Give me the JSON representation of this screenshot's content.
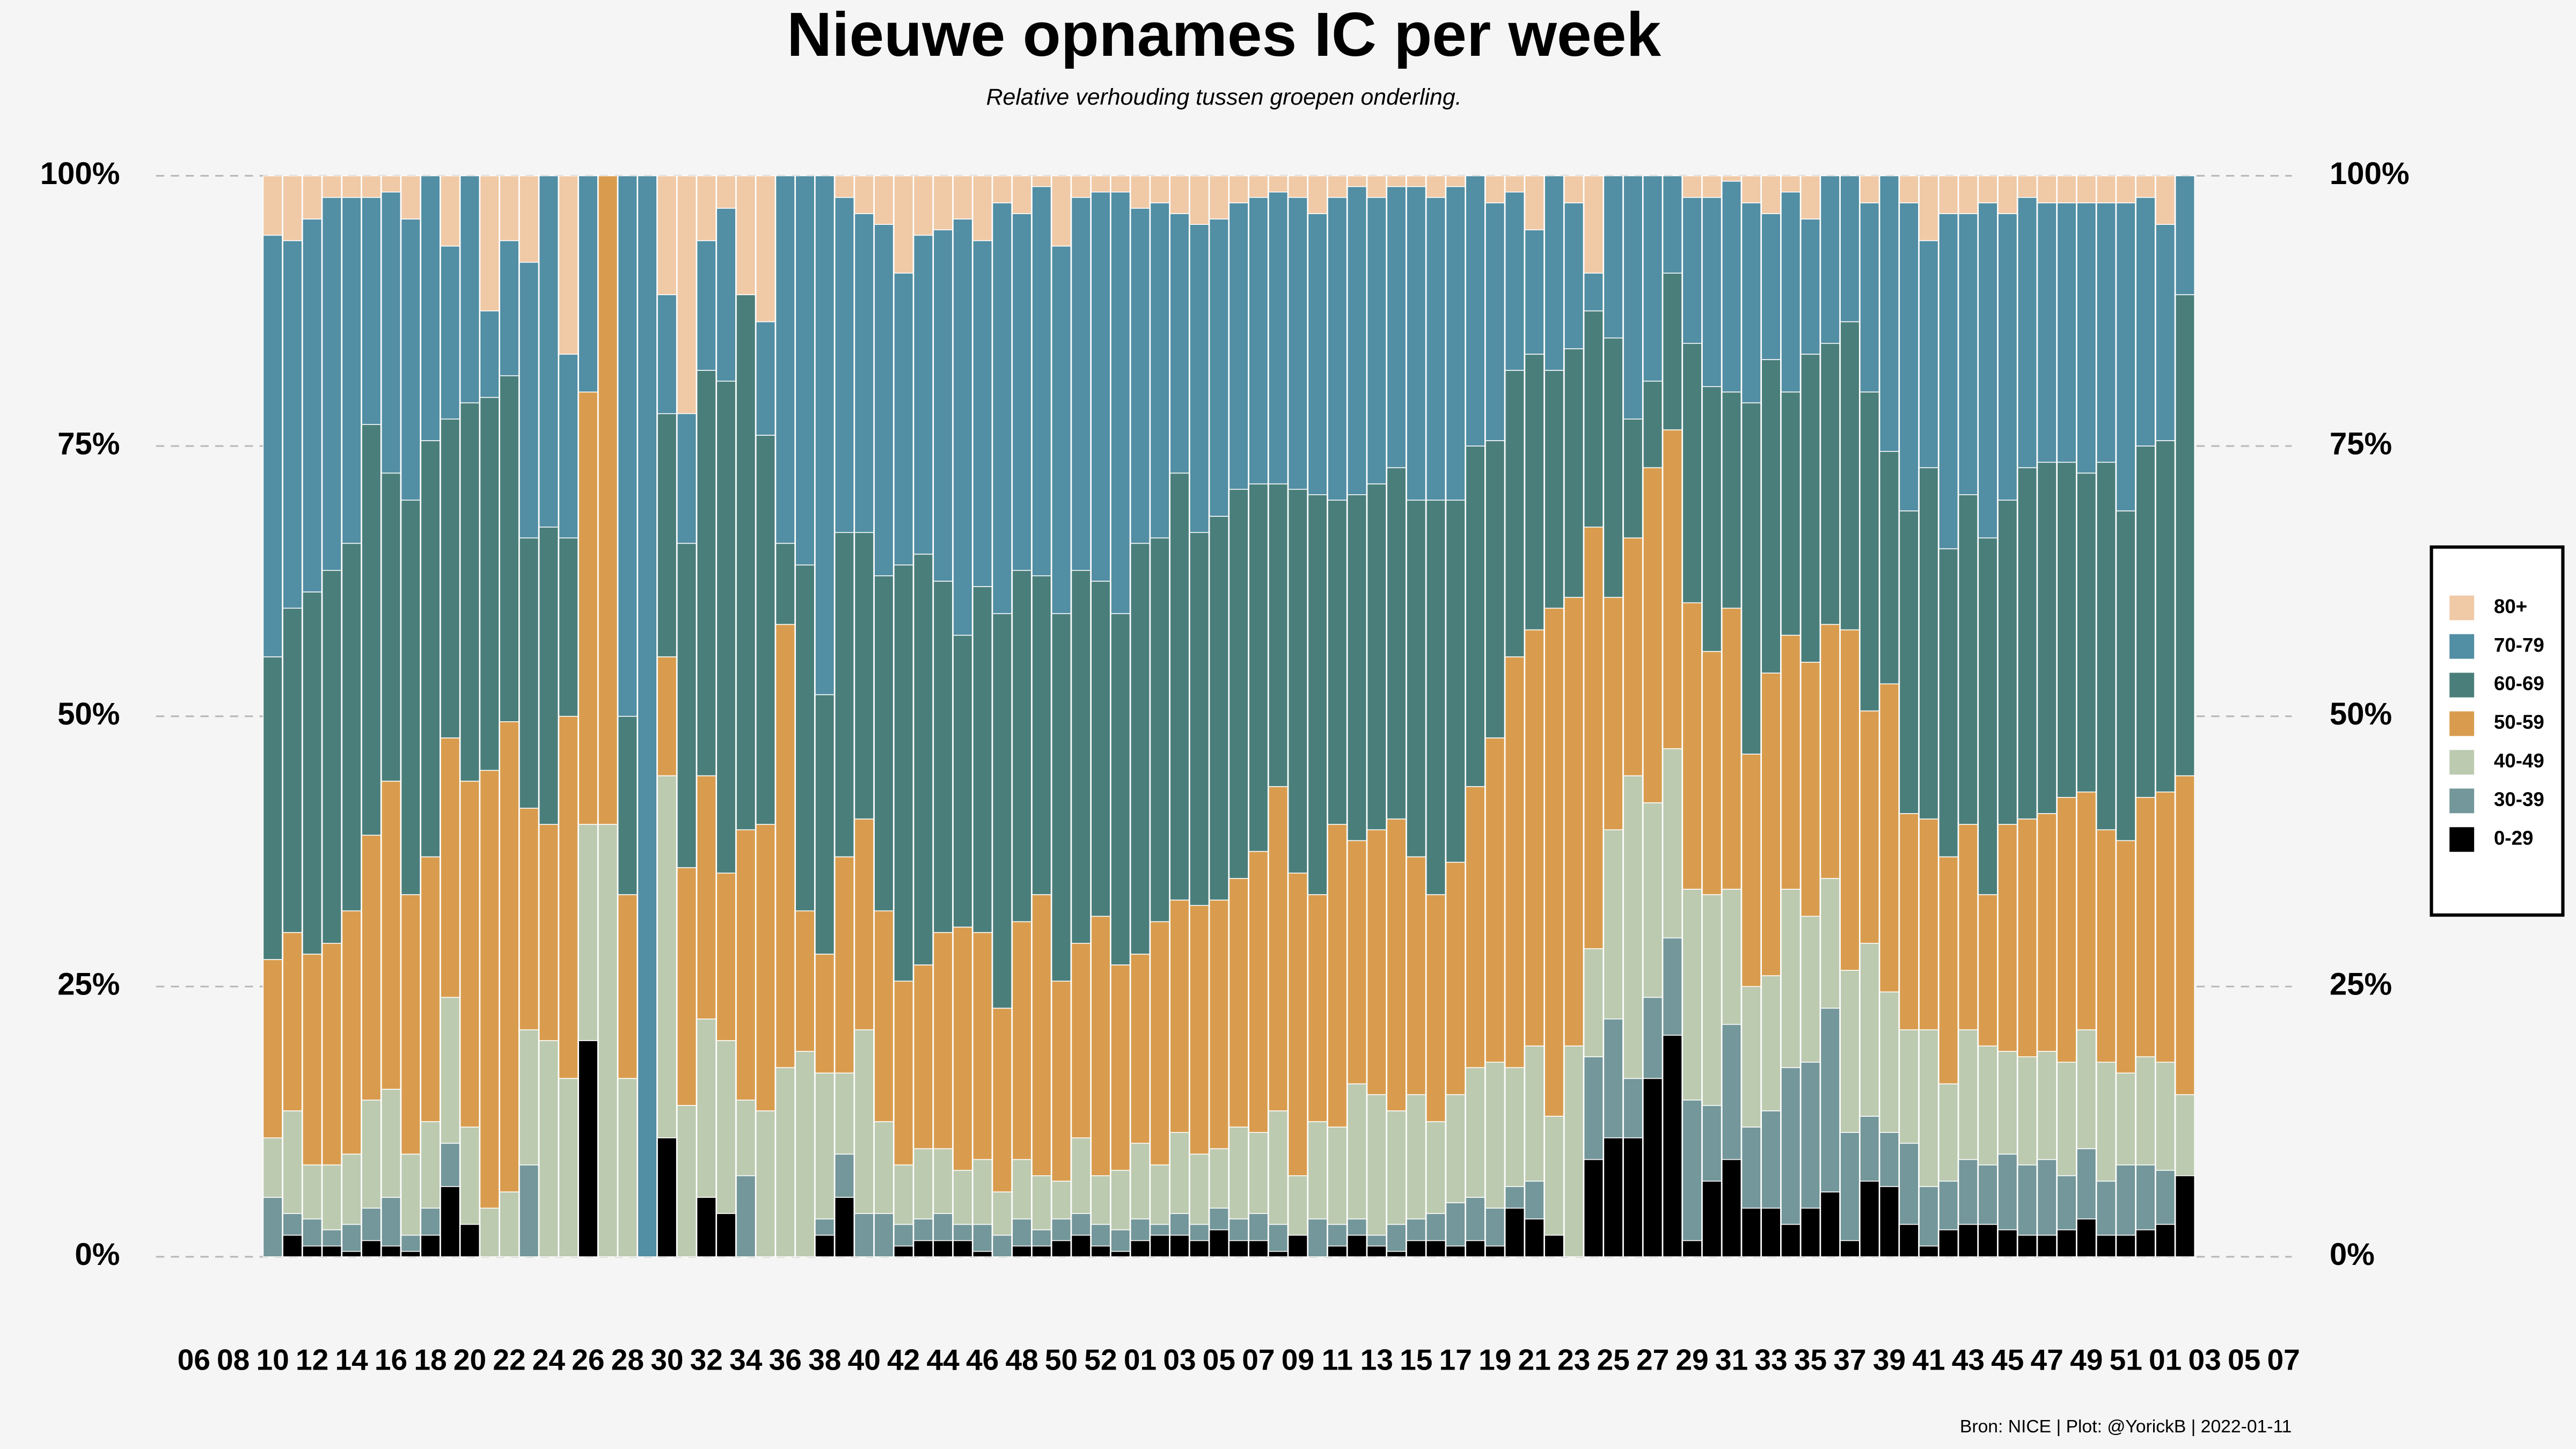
{
  "chart_data": {
    "type": "stacked_bar",
    "title": "Nieuwe opnames IC per week",
    "subtitle": "Relative verhouding tussen groepen onderling.",
    "caption": "Bron: NICE | Plot: @YorickB |  2022-01-11",
    "categories": [
      "06",
      null,
      "08",
      null,
      "10",
      null,
      "12",
      null,
      "14",
      null,
      "16",
      null,
      "18",
      null,
      "20",
      null,
      "22",
      null,
      "24",
      null,
      "26",
      null,
      "28",
      null,
      "30",
      null,
      "32",
      null,
      "34",
      null,
      "36",
      null,
      "38",
      null,
      "40",
      null,
      "42",
      null,
      "44",
      null,
      "46",
      null,
      "48",
      null,
      "50",
      null,
      "52",
      null,
      "01",
      null,
      "03",
      null,
      "05",
      null,
      "07",
      null,
      "09",
      null,
      "11",
      null,
      "13",
      null,
      "15",
      null,
      "17",
      null,
      "19",
      null,
      "21",
      null,
      "23",
      null,
      "25",
      null,
      "27",
      null,
      "29",
      null,
      "31",
      null,
      "33",
      null,
      "35",
      null,
      "37",
      null,
      "39",
      null,
      "41",
      null,
      "43",
      null,
      "45",
      null,
      "47",
      null,
      "49",
      null,
      "51",
      null,
      "01",
      null,
      "03",
      null,
      "05",
      null,
      "07"
    ],
    "ylim": [
      0,
      100
    ],
    "yticks": [
      {
        "value": 0,
        "label": "0%"
      },
      {
        "value": 25,
        "label": "25%"
      },
      {
        "value": 50,
        "label": "50%"
      },
      {
        "value": 75,
        "label": "75%"
      },
      {
        "value": 100,
        "label": "100%"
      }
    ],
    "grid": true,
    "legend": "right",
    "series": [
      {
        "name": "0-29",
        "color": "#000000",
        "values": [
          null,
          null,
          null,
          null,
          0,
          2,
          1,
          1,
          0.5,
          1.5,
          1,
          0.5,
          2,
          6.5,
          3,
          0,
          0,
          0,
          0,
          0,
          20,
          0,
          0,
          0,
          11,
          0,
          5.5,
          4,
          0,
          0,
          0,
          0,
          2,
          5.5,
          0,
          0,
          1,
          1.5,
          1.5,
          1.5,
          0.5,
          0,
          1,
          1,
          1.5,
          2,
          1,
          0.5,
          1.5,
          2,
          2,
          1.5,
          2.5,
          1.5,
          1.5,
          0.5,
          2,
          0,
          1,
          2,
          1,
          0.5,
          1.5,
          1.5,
          1,
          1.5,
          1,
          4.5,
          3.5,
          2,
          0,
          9,
          11,
          11,
          16.5,
          20.5,
          1.5,
          7,
          9,
          4.5,
          4.5,
          3,
          4.5,
          6,
          1.5,
          7,
          6.5,
          3,
          1,
          2.5,
          3,
          3,
          2.5,
          2,
          2,
          2.5,
          3.5,
          2,
          2,
          2.5,
          3,
          7.5,
          null,
          null,
          null,
          null,
          null
        ]
      },
      {
        "name": "30-39",
        "color": "#73979a",
        "values": [
          null,
          null,
          null,
          null,
          5.5,
          2,
          2.5,
          1.5,
          2.5,
          3,
          4.5,
          1.5,
          2.5,
          4,
          0,
          0,
          0,
          8.5,
          0,
          0,
          0,
          0,
          0,
          0,
          0,
          0,
          0,
          0,
          7.5,
          0,
          0,
          0,
          1.5,
          4,
          4,
          4,
          2,
          2,
          2.5,
          1.5,
          2.5,
          2,
          2.5,
          1.5,
          2,
          2,
          2,
          2,
          2,
          1,
          2,
          1.5,
          2,
          2,
          2.5,
          2.5,
          0,
          3.5,
          2,
          1.5,
          1,
          2.5,
          2,
          2.5,
          4,
          4,
          3.5,
          2,
          3.5,
          0,
          0,
          9.5,
          11,
          5.5,
          7.5,
          9,
          13,
          7,
          12.5,
          7.5,
          9,
          14.5,
          13.5,
          17,
          10,
          6,
          5,
          7.5,
          5.5,
          4.5,
          6,
          5.5,
          7,
          6.5,
          7,
          5,
          6.5,
          5,
          6.5,
          6,
          5,
          0,
          null,
          null,
          null,
          null,
          null
        ]
      },
      {
        "name": "40-49",
        "color": "#bccab0",
        "values": [
          null,
          null,
          null,
          null,
          5.5,
          9.5,
          5,
          6,
          6.5,
          10,
          10,
          7.5,
          8,
          13.5,
          9,
          4.5,
          6,
          12.5,
          20,
          16.5,
          20,
          40,
          16.5,
          0,
          33.5,
          14,
          16.5,
          16,
          7,
          13.5,
          17.5,
          19,
          13.5,
          7.5,
          17,
          8.5,
          5.5,
          6.5,
          6,
          5,
          6,
          4,
          5.5,
          5,
          3.5,
          7,
          4.5,
          5.5,
          7,
          5.5,
          7.5,
          6.5,
          5.5,
          8.5,
          7.5,
          10.5,
          5.5,
          9,
          9,
          12.5,
          13,
          10.5,
          11.5,
          8.5,
          10,
          12,
          13.5,
          11,
          12.5,
          11,
          19.5,
          10,
          17.5,
          28,
          18,
          17.5,
          19.5,
          19.5,
          12.5,
          13,
          12.5,
          16.5,
          13.5,
          12,
          15,
          16,
          13,
          10.5,
          14.5,
          9,
          12,
          11,
          9.5,
          10,
          10,
          10.5,
          11,
          11,
          8.5,
          10,
          10,
          7.5,
          null,
          null,
          null,
          null,
          null
        ]
      },
      {
        "name": "50-59",
        "color": "#d99c4e",
        "values": [
          null,
          null,
          null,
          null,
          16.5,
          16.5,
          19.5,
          20.5,
          22.5,
          24.5,
          28.5,
          24,
          24.5,
          24,
          32,
          40.5,
          43.5,
          20.5,
          20,
          33.5,
          40,
          60,
          17,
          0,
          11,
          22,
          22.5,
          15.5,
          25,
          26.5,
          41,
          13,
          11,
          20,
          19.5,
          19.5,
          17,
          17,
          20,
          22.5,
          21,
          17,
          22,
          26,
          18.5,
          18,
          24,
          19,
          17.5,
          22.5,
          21.5,
          23,
          23,
          23,
          26,
          30,
          28,
          21,
          28,
          22.5,
          24.5,
          27,
          22,
          21,
          21.5,
          26,
          30,
          38,
          38.5,
          47,
          41.5,
          39,
          21.5,
          22,
          31,
          29.5,
          26.5,
          22.5,
          26,
          21.5,
          28,
          23.5,
          23.5,
          23.5,
          31.5,
          21.5,
          28.5,
          20,
          19.5,
          21,
          19,
          14,
          21,
          22,
          22,
          24.5,
          22,
          21.5,
          21.5,
          24,
          25,
          29.5,
          null,
          null,
          null,
          null,
          null
        ]
      },
      {
        "name": "60-69",
        "color": "#4a7e7b",
        "values": [
          null,
          null,
          null,
          null,
          28,
          30,
          33.5,
          34.5,
          34,
          38,
          28.5,
          36.5,
          38.5,
          29.5,
          35,
          34.5,
          32,
          25,
          27.5,
          16.5,
          0,
          0,
          16.5,
          0,
          22.5,
          30,
          37.5,
          45.5,
          49.5,
          36,
          7.5,
          32,
          24,
          30,
          26.5,
          31,
          38.5,
          38,
          32.5,
          27,
          32,
          36.5,
          32.5,
          29.5,
          34,
          34.5,
          31,
          32.5,
          38,
          35.5,
          39.5,
          34.5,
          35.5,
          36,
          34,
          28,
          35.5,
          37,
          30,
          32,
          32,
          32.5,
          33,
          36.5,
          33.5,
          31.5,
          27.5,
          26.5,
          25.5,
          22,
          23,
          20,
          24,
          11,
          8,
          14.5,
          24,
          24.5,
          20,
          32.5,
          29,
          22.5,
          28.5,
          26,
          28.5,
          29.5,
          21.5,
          28,
          32.5,
          28.5,
          30.5,
          33,
          30,
          32.5,
          32.5,
          31,
          29.5,
          34,
          30.5,
          32.5,
          32.5,
          44.5,
          null,
          null,
          null,
          null,
          null
        ]
      },
      {
        "name": "70-79",
        "color": "#528ea4",
        "values": [
          null,
          null,
          null,
          null,
          39,
          34,
          34.5,
          34.5,
          32,
          21,
          26,
          26,
          24.5,
          16,
          21,
          8,
          12.5,
          25.5,
          32.5,
          17,
          20,
          0,
          50,
          100,
          11,
          12,
          12,
          16,
          0,
          10.5,
          34,
          36,
          48,
          31,
          29.5,
          32.5,
          27,
          29.5,
          32.5,
          38.5,
          32,
          38,
          33,
          36,
          34,
          34.5,
          36,
          39,
          31,
          31,
          24,
          28.5,
          27.5,
          26.5,
          26.5,
          27,
          27,
          26,
          28,
          28.5,
          26.5,
          26,
          29,
          28,
          29,
          25,
          22,
          16.5,
          11.5,
          18,
          13.5,
          3.5,
          15,
          22.5,
          19,
          9,
          13.5,
          17.5,
          19.5,
          18.5,
          13.5,
          18.5,
          12.5,
          15.5,
          13.5,
          17.5,
          25.5,
          28.5,
          21,
          31,
          26,
          31,
          26.5,
          25,
          24,
          24,
          25,
          24,
          28.5,
          23,
          20,
          11,
          null,
          null,
          null,
          null,
          null
        ]
      },
      {
        "name": "80+",
        "color": "#f0c9a6",
        "values": [
          null,
          null,
          null,
          null,
          5.5,
          6,
          4,
          2,
          2,
          2,
          1.5,
          4,
          0,
          6.5,
          0,
          12.5,
          6,
          8,
          0,
          16.5,
          0,
          0,
          0,
          0,
          11,
          22,
          6,
          3,
          11,
          13.5,
          0,
          0,
          0,
          2,
          3.5,
          4.5,
          9,
          5.5,
          5,
          4,
          6,
          2.5,
          3.5,
          1,
          6.5,
          2,
          1.5,
          1.5,
          3,
          2.5,
          3.5,
          4.5,
          4,
          2.5,
          2,
          1.5,
          2,
          3.5,
          2,
          1,
          2,
          1,
          1,
          2,
          1,
          0,
          2.5,
          1.5,
          5,
          0,
          2.5,
          9,
          0,
          0,
          0,
          0,
          2,
          2,
          0.5,
          2.5,
          3.5,
          1.5,
          4,
          0,
          0,
          2.5,
          0,
          2.5,
          6,
          3.5,
          3.5,
          2.5,
          3.5,
          2,
          2.5,
          2.5,
          2.5,
          2.5,
          2.5,
          2,
          4.5,
          0,
          null,
          null,
          null,
          null,
          null
        ]
      }
    ]
  }
}
